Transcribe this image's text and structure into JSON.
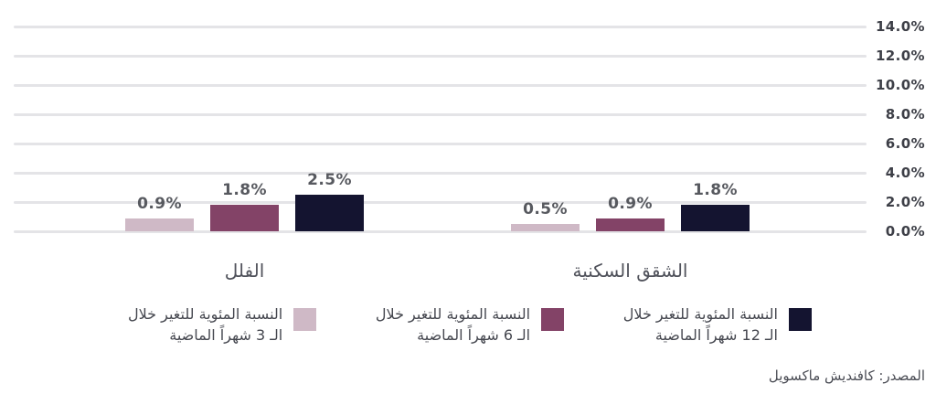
{
  "chart_data": {
    "type": "bar",
    "title": "",
    "categories": [
      "الفلل",
      "الشقق السكنية"
    ],
    "series": [
      {
        "name": "النسبة المئوية للتغير خلال الـ 3 شهراً الماضية",
        "label_lines": [
          "النسبة المئوية للتغير خلال",
          "الـ 3 شهراً الماضية"
        ],
        "color": "#cfb9c6",
        "values": [
          0.9,
          0.5
        ],
        "value_labels": [
          "0.9%",
          "0.5%"
        ]
      },
      {
        "name": "النسبة المئوية للتغير خلال الـ 6 شهراً الماضية",
        "label_lines": [
          "النسبة المئوية للتغير خلال",
          "الـ 6 شهراً الماضية"
        ],
        "color": "#834367",
        "values": [
          1.8,
          0.9
        ],
        "value_labels": [
          "1.8%",
          "0.9%"
        ]
      },
      {
        "name": "النسبة المئوية للتغير خلال الـ 12 شهراً الماضية",
        "label_lines": [
          "النسبة المئوية للتغير خلال",
          "الـ 12 شهراً الماضية"
        ],
        "color": "#141430",
        "values": [
          2.5,
          1.8
        ],
        "value_labels": [
          "2.5%",
          "1.8%"
        ]
      }
    ],
    "ylim": [
      0,
      14
    ],
    "yticks": [
      {
        "value": 0,
        "label": "0.0%"
      },
      {
        "value": 2,
        "label": "2.0%"
      },
      {
        "value": 4,
        "label": "4.0%"
      },
      {
        "value": 6,
        "label": "6.0%"
      },
      {
        "value": 8,
        "label": "8.0%"
      },
      {
        "value": 10,
        "label": "10.0%"
      },
      {
        "value": 12,
        "label": "12.0%"
      },
      {
        "value": 14,
        "label": "14.0%"
      }
    ],
    "grid": true,
    "legend_position": "bottom",
    "source": "المصدر: كافنديش ماكسويل"
  },
  "colors": {
    "gridline": "#e4e4e7",
    "tick_text": "#3d3f47",
    "value_text": "#57595f",
    "label_text": "#50525b",
    "background": "#ffffff"
  }
}
